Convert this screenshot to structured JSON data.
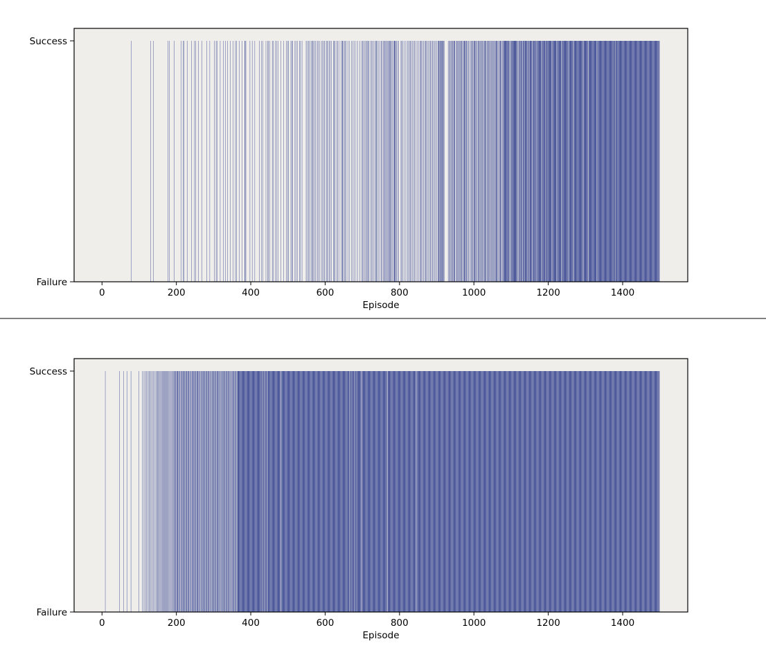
{
  "chart_data": [
    {
      "type": "bar",
      "xlabel": "Episode",
      "ylabel": "",
      "xlim": [
        -75,
        1575
      ],
      "ylim": [
        0,
        1
      ],
      "xticks": [
        0,
        200,
        400,
        600,
        800,
        1000,
        1200,
        1400
      ],
      "yticks": [
        {
          "value": 0,
          "label": "Failure"
        },
        {
          "value": 1,
          "label": "Success"
        }
      ],
      "bar_color": "#1f2f85",
      "background_color": "#efeeeb",
      "episodes": 1500,
      "success_episodes": [
        79,
        131,
        138,
        178,
        181,
        194,
        213,
        218,
        221,
        229,
        241,
        249,
        252,
        259,
        269,
        282,
        290,
        302,
        307,
        310,
        318,
        327,
        332,
        338,
        345,
        352,
        359,
        362,
        369,
        377,
        384,
        385,
        387,
        398,
        404,
        411,
        423,
        429,
        433,
        441,
        446,
        447,
        451,
        458,
        461,
        466,
        470,
        474,
        481,
        488,
        496,
        499,
        502,
        508,
        511,
        513,
        519,
        522,
        526,
        531,
        534,
        538,
        549,
        552,
        556,
        558,
        562,
        565,
        566,
        569,
        572,
        575,
        579,
        582,
        585,
        590,
        593,
        596,
        598,
        603,
        605,
        608,
        612,
        614,
        617,
        622,
        625,
        627,
        631,
        634,
        638,
        643,
        646,
        647,
        649,
        652,
        654,
        657,
        662,
        666,
        671,
        675,
        679,
        683,
        688,
        693,
        698,
        701,
        703,
        707,
        709,
        712,
        713,
        716,
        718,
        721,
        725,
        727,
        731,
        734,
        737,
        738,
        740,
        743,
        747,
        751,
        753,
        756,
        758,
        761,
        763,
        765,
        767,
        769,
        771,
        773,
        775,
        776,
        779,
        781,
        784,
        786,
        787,
        789,
        790,
        792,
        795,
        798,
        804,
        806,
        808,
        813,
        817,
        821,
        824,
        827,
        829,
        832,
        835,
        838,
        841,
        844,
        848,
        852,
        855,
        857,
        859,
        862,
        865,
        868,
        870,
        872,
        875,
        878,
        881,
        883,
        886,
        889,
        891,
        894,
        897,
        900,
        903,
        905,
        906,
        908,
        910,
        911,
        912,
        913,
        915,
        916,
        917,
        919,
        921,
        931,
        933,
        935,
        938,
        940,
        941,
        943,
        945,
        946,
        948,
        949,
        952,
        954,
        956,
        958,
        959,
        962,
        963,
        965,
        967,
        968,
        970,
        973,
        974,
        975,
        976,
        978,
        980,
        981,
        983,
        986,
        988,
        991,
        993,
        995,
        997,
        998,
        1001,
        1002,
        1003,
        1005,
        1007,
        1008,
        1011,
        1012,
        1014,
        1016,
        1017,
        1019,
        1021,
        1023,
        1024,
        1026,
        1028,
        1030,
        1031,
        1033,
        1035,
        1037,
        1038,
        1040,
        1042,
        1044,
        1046,
        1047,
        1049,
        1051,
        1053,
        1054,
        1056,
        1058,
        1060,
        1061,
        1062,
        1063,
        1065,
        1067,
        1069,
        1071,
        1072,
        1074,
        1076,
        1078,
        1079,
        1081,
        1082,
        1083,
        1084,
        1085,
        1086,
        1087,
        1088,
        1089,
        1090,
        1091,
        1092,
        1093,
        1094,
        1095,
        1097,
        1099,
        1101,
        1102,
        1103,
        1104,
        1105,
        1106,
        1107,
        1108,
        1109,
        1110,
        1111,
        1112,
        1113,
        1114,
        1115,
        1116,
        1118,
        1120,
        1121,
        1123,
        1124,
        1125,
        1127,
        1128,
        1129,
        1130,
        1132,
        1133,
        1134,
        1135,
        1136,
        1138,
        1139,
        1140,
        1141,
        1142,
        1143,
        1144,
        1146,
        1147,
        1148,
        1149,
        1151,
        1152,
        1153,
        1154,
        1155,
        1156,
        1158,
        1159,
        1160,
        1161,
        1162,
        1163,
        1164,
        1166,
        1167,
        1168,
        1170,
        1171,
        1172,
        1173,
        1174,
        1175,
        1176,
        1177,
        1178,
        1179,
        1180,
        1181,
        1183,
        1184,
        1185,
        1186,
        1187,
        1188,
        1189,
        1190,
        1191,
        1192,
        1194,
        1195,
        1196,
        1197,
        1198,
        1199,
        1200,
        1201,
        1202,
        1203,
        1204,
        1205,
        1206,
        1207,
        1208,
        1209,
        1211,
        1212,
        1213,
        1214,
        1215,
        1216,
        1217,
        1218,
        1219,
        1220,
        1221,
        1222,
        1224,
        1225,
        1226,
        1227,
        1228,
        1229,
        1230,
        1231,
        1232,
        1233,
        1234,
        1236,
        1237,
        1238,
        1239,
        1240,
        1241,
        1242,
        1243,
        1244,
        1245,
        1246,
        1247,
        1248,
        1249,
        1250,
        1251,
        1252,
        1253,
        1254,
        1255,
        1257,
        1258,
        1259,
        1260,
        1261,
        1262,
        1263,
        1264,
        1265,
        1266,
        1267,
        1268,
        1270,
        1271,
        1272,
        1273,
        1274,
        1275,
        1276,
        1277,
        1278,
        1279,
        1280,
        1281,
        1282,
        1283,
        1284,
        1285,
        1286,
        1287,
        1288,
        1289,
        1290,
        1291,
        1292,
        1293,
        1295,
        1296,
        1297,
        1298,
        1299,
        1300,
        1301,
        1302,
        1303,
        1304,
        1305,
        1306,
        1307,
        1309,
        1310,
        1311,
        1312,
        1313,
        1314,
        1315,
        1316,
        1317,
        1318,
        1319,
        1320,
        1321,
        1322,
        1323,
        1324,
        1325,
        1326,
        1327,
        1328,
        1329,
        1330,
        1332,
        1333,
        1334,
        1335,
        1336,
        1337,
        1338,
        1339,
        1340,
        1341,
        1342,
        1343,
        1344,
        1345,
        1346,
        1347,
        1348,
        1349,
        1350,
        1351,
        1352,
        1353,
        1354,
        1355,
        1356,
        1357,
        1358,
        1359,
        1360,
        1361,
        1362,
        1363,
        1364,
        1365,
        1366,
        1367,
        1368,
        1369,
        1370,
        1371,
        1372,
        1373,
        1374,
        1375,
        1376,
        1377,
        1378,
        1379,
        1380,
        1382,
        1383,
        1384,
        1385,
        1386,
        1387,
        1388,
        1389,
        1390,
        1391,
        1392,
        1393,
        1394,
        1395,
        1396,
        1397,
        1398,
        1399,
        1400,
        1401,
        1402,
        1403,
        1404,
        1405,
        1406,
        1407,
        1408,
        1409,
        1410,
        1411,
        1412,
        1413,
        1414,
        1415,
        1416,
        1417,
        1418,
        1419,
        1420,
        1421,
        1422,
        1423,
        1424,
        1425,
        1426,
        1427,
        1428,
        1429,
        1430,
        1431,
        1432,
        1433,
        1434,
        1435,
        1436,
        1437,
        1438,
        1439,
        1440,
        1441,
        1442,
        1443,
        1444,
        1445,
        1446,
        1447,
        1448,
        1449,
        1450,
        1451,
        1452,
        1453,
        1454,
        1455,
        1456,
        1457,
        1458,
        1459,
        1460,
        1461,
        1462,
        1463,
        1464,
        1465,
        1466,
        1467,
        1468,
        1469,
        1470,
        1471,
        1472,
        1473,
        1474,
        1475,
        1476,
        1477,
        1478,
        1479,
        1480,
        1481,
        1482,
        1483,
        1484,
        1485,
        1486,
        1487,
        1488,
        1489,
        1490,
        1491,
        1492,
        1493,
        1494,
        1495,
        1496,
        1497,
        1498,
        1499
      ],
      "success_from_episode": 1500
    },
    {
      "type": "bar",
      "xlabel": "Episode",
      "ylabel": "",
      "xlim": [
        -75,
        1575
      ],
      "ylim": [
        0,
        1
      ],
      "xticks": [
        0,
        200,
        400,
        600,
        800,
        1000,
        1200,
        1400
      ],
      "yticks": [
        {
          "value": 0,
          "label": "Failure"
        },
        {
          "value": 1,
          "label": "Success"
        }
      ],
      "bar_color": "#1f2f85",
      "background_color": "#efeeeb",
      "episodes": 1500,
      "success_episodes": [
        9,
        47,
        58,
        67,
        78,
        99,
        109,
        113,
        116,
        119,
        122,
        126,
        128,
        130,
        133,
        136,
        139,
        142,
        145,
        148,
        150,
        152,
        154,
        156,
        158,
        160,
        162,
        164,
        166,
        168,
        170,
        172,
        174,
        176,
        178,
        180,
        182,
        184,
        186,
        188,
        190,
        192,
        194,
        196,
        197,
        198,
        200,
        202,
        203,
        204,
        206,
        208,
        209,
        210,
        212,
        214,
        215,
        216,
        218,
        220,
        221,
        222,
        224,
        226,
        227,
        228,
        230,
        232,
        233,
        234,
        236,
        238,
        239,
        240,
        242,
        244,
        245,
        246,
        248,
        250,
        251,
        252,
        254,
        256,
        257,
        258,
        260,
        262,
        263,
        264,
        266,
        268,
        269,
        270,
        272,
        274,
        275,
        276,
        278,
        280,
        281,
        282,
        284,
        286,
        287,
        288,
        290,
        292,
        293,
        294,
        296,
        298,
        299,
        300,
        302,
        304,
        305,
        306,
        308,
        310,
        311,
        312,
        314,
        316,
        317,
        318,
        320,
        322,
        323,
        324,
        326,
        328,
        329,
        330,
        332,
        334,
        335,
        336,
        338,
        340,
        341,
        342,
        344,
        346,
        347,
        348,
        350,
        352,
        353,
        354,
        356,
        358,
        359,
        360,
        362,
        364,
        365,
        366,
        367,
        368,
        369,
        370,
        371,
        372,
        373,
        374,
        375,
        376,
        377,
        378,
        379,
        380,
        381,
        382,
        383,
        384,
        385,
        386,
        387,
        388,
        389,
        390,
        391,
        392,
        393,
        394,
        395,
        396,
        397,
        398,
        399,
        400,
        401,
        402,
        403,
        404,
        405,
        406,
        407,
        408,
        409,
        410,
        411,
        412,
        413,
        414,
        415,
        416,
        417,
        418,
        419,
        420,
        421,
        422,
        423,
        424,
        425,
        426,
        427,
        428,
        429,
        430,
        431,
        433,
        434,
        435,
        436,
        438,
        439,
        440,
        441,
        442,
        443,
        444,
        446,
        447,
        448,
        449,
        450,
        451,
        452,
        453,
        454,
        455,
        456,
        457,
        458,
        459,
        460,
        461,
        462,
        463,
        464,
        465,
        466,
        467,
        468,
        469,
        470,
        471,
        472,
        473,
        474,
        475,
        476,
        477,
        478,
        479,
        480,
        482,
        483,
        484,
        485,
        486,
        487,
        488,
        489,
        490,
        491,
        492,
        493,
        494,
        495,
        496,
        497,
        498,
        499,
        500,
        501,
        502,
        503,
        504,
        505,
        506,
        507,
        508,
        509,
        510,
        511,
        512,
        513,
        514,
        515,
        516,
        517,
        518,
        519,
        520,
        521,
        522,
        523,
        524,
        525,
        526,
        527,
        528,
        529,
        530,
        531,
        532,
        533,
        534,
        535,
        536,
        537,
        538,
        539,
        540,
        541,
        542,
        543,
        544,
        545,
        546,
        547,
        548,
        549,
        550,
        551,
        552,
        553,
        554,
        555,
        556,
        557,
        558,
        559,
        560,
        561,
        562,
        563,
        564,
        565,
        566,
        567,
        568,
        569,
        570,
        571,
        572,
        573,
        574,
        575,
        576,
        577,
        578,
        579,
        580,
        581,
        582,
        583,
        584,
        585,
        586,
        587,
        588,
        589,
        590,
        591,
        592,
        593,
        594,
        595,
        596,
        597,
        598,
        599,
        600,
        601,
        602,
        603,
        604,
        605,
        606,
        607,
        608,
        609,
        610,
        611,
        612,
        613,
        614,
        615,
        616,
        617,
        618,
        619,
        620,
        621,
        622,
        623,
        624,
        625,
        626,
        627,
        628,
        629,
        630,
        631,
        632,
        633,
        634,
        635,
        636,
        637,
        638,
        639,
        640,
        641,
        642,
        643,
        644,
        645,
        646,
        647,
        648,
        649,
        650,
        651,
        652,
        653,
        654,
        655,
        656,
        657,
        658,
        659,
        660,
        661,
        662,
        663,
        664,
        665,
        667,
        668,
        669,
        670,
        671,
        672,
        673,
        674,
        675,
        676,
        677,
        679,
        680,
        681,
        682,
        683,
        684,
        685,
        686,
        687,
        688,
        689,
        690,
        691,
        692,
        693,
        694,
        695,
        696,
        697,
        699,
        700,
        701,
        702,
        703,
        704,
        705,
        706,
        707,
        708,
        709,
        710,
        711,
        712,
        713,
        714,
        715,
        716,
        717,
        718,
        719,
        720,
        721,
        722,
        723,
        724,
        725,
        726,
        727,
        728,
        729,
        730,
        731,
        732,
        733,
        734,
        735,
        736,
        737,
        738,
        739,
        740,
        741,
        742,
        743,
        744,
        745,
        746,
        747,
        748,
        749,
        750,
        751,
        752,
        753,
        754,
        755,
        756,
        757,
        758,
        759,
        760,
        761,
        762,
        763,
        764,
        765,
        766,
        767,
        769,
        770,
        771,
        772,
        773,
        774,
        775,
        776,
        777,
        778,
        779,
        780,
        781,
        782,
        783,
        784,
        785,
        786,
        787,
        788,
        789,
        790,
        791,
        792,
        793,
        794,
        795,
        796,
        797,
        798,
        799,
        800,
        801,
        802,
        803,
        804,
        805,
        806,
        807,
        808,
        809,
        810,
        811,
        812,
        813,
        814,
        815,
        816,
        817,
        818,
        819,
        820,
        821,
        822,
        823,
        824,
        825,
        826,
        827,
        828,
        829,
        830,
        831,
        832,
        833,
        834,
        835,
        836,
        837,
        838,
        839,
        840,
        841,
        842,
        843,
        844,
        846
      ],
      "success_from_episode": 847
    }
  ]
}
